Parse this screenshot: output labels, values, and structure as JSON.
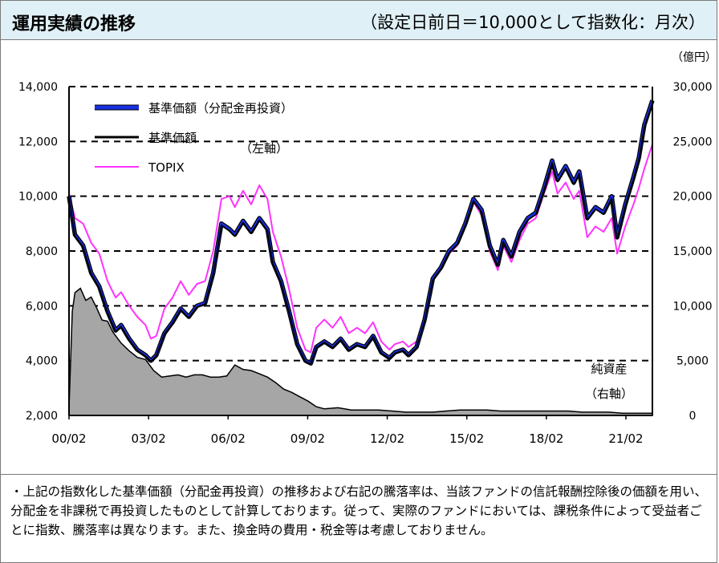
{
  "header": {
    "title": "運用実績の推移",
    "subtitle": "（設定日前日＝10,000として指数化：月次）"
  },
  "note": "・上記の指数化した基準価額（分配金再投資）の推移および右記の騰落率は、当該ファンドの信託報酬控除後の価額を用い、分配金を非課税で再投資したものとして計算しております。従って、実際のファンドにおいては、課税条件によって受益者ごとに指数、騰落率は異なります。また、換金時の費用・税金等は考慮しておりません。",
  "chart_data": {
    "type": "line",
    "x_ticks": [
      "00/02",
      "03/02",
      "06/02",
      "09/02",
      "12/02",
      "15/02",
      "18/02",
      "21/02"
    ],
    "x_range": [
      2000.08,
      2021.6
    ],
    "y_left": {
      "ylim": [
        2000,
        14000
      ],
      "ticks": [
        "2,000",
        "4,000",
        "6,000",
        "8,000",
        "10,000",
        "12,000",
        "14,000"
      ]
    },
    "y_right": {
      "unit_label": "（億円）",
      "ylim": [
        0,
        30000
      ],
      "ticks": [
        "0",
        "5,000",
        "10,000",
        "15,000",
        "20,000",
        "25,000",
        "30,000"
      ]
    },
    "axis_annotation_left": "（左軸）",
    "net_assets_label": [
      "純資産",
      "（右軸）"
    ],
    "grid": "dashed horizontal",
    "legend_position": "top-left",
    "colors": {
      "nav_reinvested": "#1a2fe0",
      "nav": "#000000",
      "topix": "#ff33ff",
      "net_assets": "#a6a6a6"
    },
    "series": [
      {
        "name": "基準価額（分配金再投資）",
        "axis": "left",
        "x": [
          2000.08,
          2000.3,
          2000.6,
          2000.9,
          2001.2,
          2001.5,
          2001.8,
          2002.0,
          2002.3,
          2002.6,
          2002.9,
          2003.1,
          2003.3,
          2003.6,
          2003.9,
          2004.2,
          2004.5,
          2004.8,
          2005.1,
          2005.4,
          2005.7,
          2006.0,
          2006.2,
          2006.5,
          2006.8,
          2007.1,
          2007.4,
          2007.6,
          2007.9,
          2008.2,
          2008.5,
          2008.8,
          2009.0,
          2009.2,
          2009.5,
          2009.8,
          2010.1,
          2010.4,
          2010.7,
          2011.0,
          2011.3,
          2011.6,
          2011.9,
          2012.1,
          2012.4,
          2012.6,
          2012.9,
          2013.2,
          2013.5,
          2013.8,
          2014.1,
          2014.4,
          2014.7,
          2015.0,
          2015.3,
          2015.6,
          2015.9,
          2016.1,
          2016.4,
          2016.7,
          2017.0,
          2017.3,
          2017.6,
          2017.9,
          2018.1,
          2018.4,
          2018.7,
          2018.9,
          2019.2,
          2019.5,
          2019.8,
          2020.1,
          2020.3,
          2020.6,
          2020.9,
          2021.1,
          2021.3,
          2021.6
        ],
        "y": [
          10000,
          8600,
          8200,
          7200,
          6700,
          5800,
          5100,
          5300,
          4800,
          4400,
          4200,
          4000,
          4200,
          5000,
          5400,
          5900,
          5600,
          6000,
          6100,
          7200,
          9000,
          8800,
          8600,
          9100,
          8700,
          9200,
          8800,
          7600,
          6900,
          5800,
          4600,
          4000,
          3900,
          4500,
          4700,
          4500,
          4800,
          4400,
          4600,
          4500,
          4900,
          4300,
          4100,
          4300,
          4400,
          4200,
          4500,
          5500,
          7000,
          7400,
          8000,
          8300,
          9000,
          9900,
          9500,
          8200,
          7500,
          8400,
          7800,
          8700,
          9200,
          9400,
          10300,
          11300,
          10600,
          11100,
          10500,
          10900,
          9200,
          9600,
          9400,
          10000,
          8500,
          9700,
          10700,
          11400,
          12600,
          13500
        ]
      },
      {
        "name": "基準価額",
        "axis": "left",
        "x": [
          2000.08,
          2000.3,
          2000.6,
          2000.9,
          2001.2,
          2001.5,
          2001.8,
          2002.0,
          2002.3,
          2002.6,
          2002.9,
          2003.1,
          2003.3,
          2003.6,
          2003.9,
          2004.2,
          2004.5,
          2004.8,
          2005.1,
          2005.4,
          2005.7,
          2006.0,
          2006.2,
          2006.5,
          2006.8,
          2007.1,
          2007.4,
          2007.6,
          2007.9,
          2008.2,
          2008.5,
          2008.8,
          2009.0,
          2009.2,
          2009.5,
          2009.8,
          2010.1,
          2010.4,
          2010.7,
          2011.0,
          2011.3,
          2011.6,
          2011.9,
          2012.1,
          2012.4,
          2012.6,
          2012.9,
          2013.2,
          2013.5,
          2013.8,
          2014.1,
          2014.4,
          2014.7,
          2015.0,
          2015.3,
          2015.6,
          2015.9,
          2016.1,
          2016.4,
          2016.7,
          2017.0,
          2017.3,
          2017.6,
          2017.9,
          2018.1,
          2018.4,
          2018.7,
          2018.9,
          2019.2,
          2019.5,
          2019.8,
          2020.1,
          2020.3,
          2020.6,
          2020.9,
          2021.1,
          2021.3,
          2021.6
        ],
        "y": [
          10000,
          8550,
          8150,
          7150,
          6650,
          5760,
          5060,
          5250,
          4760,
          4370,
          4170,
          3980,
          4170,
          4970,
          5360,
          5860,
          5560,
          5960,
          6060,
          7150,
          8940,
          8740,
          8540,
          9040,
          8640,
          9130,
          8740,
          7550,
          6850,
          5760,
          4570,
          3970,
          3880,
          4470,
          4670,
          4470,
          4770,
          4370,
          4570,
          4470,
          4870,
          4270,
          4080,
          4270,
          4370,
          4180,
          4470,
          5460,
          6950,
          7350,
          7940,
          8240,
          8940,
          9830,
          9430,
          8140,
          7450,
          8340,
          7750,
          8640,
          9130,
          9330,
          10230,
          11220,
          10530,
          11020,
          10430,
          10820,
          9140,
          9530,
          9340,
          9930,
          8440,
          9630,
          10620,
          11320,
          12510,
          13400
        ]
      },
      {
        "name": "TOPIX",
        "axis": "left",
        "x": [
          2000.08,
          2000.3,
          2000.6,
          2000.9,
          2001.2,
          2001.5,
          2001.8,
          2002.0,
          2002.3,
          2002.6,
          2002.9,
          2003.1,
          2003.3,
          2003.6,
          2003.9,
          2004.2,
          2004.5,
          2004.8,
          2005.1,
          2005.4,
          2005.7,
          2006.0,
          2006.2,
          2006.5,
          2006.8,
          2007.1,
          2007.4,
          2007.6,
          2007.9,
          2008.2,
          2008.5,
          2008.8,
          2009.0,
          2009.2,
          2009.5,
          2009.8,
          2010.1,
          2010.4,
          2010.7,
          2011.0,
          2011.3,
          2011.6,
          2011.9,
          2012.1,
          2012.4,
          2012.6,
          2012.9,
          2013.2,
          2013.5,
          2013.8,
          2014.1,
          2014.4,
          2014.7,
          2015.0,
          2015.3,
          2015.6,
          2015.9,
          2016.1,
          2016.4,
          2016.7,
          2017.0,
          2017.3,
          2017.6,
          2017.9,
          2018.1,
          2018.4,
          2018.7,
          2018.9,
          2019.2,
          2019.5,
          2019.8,
          2020.1,
          2020.3,
          2020.6,
          2020.9,
          2021.1,
          2021.3,
          2021.6
        ],
        "y": [
          10100,
          9200,
          9000,
          8300,
          7900,
          6900,
          6300,
          6500,
          6000,
          5600,
          5300,
          4800,
          4900,
          5900,
          6300,
          6900,
          6400,
          6800,
          6900,
          8000,
          9900,
          10000,
          9600,
          10200,
          9700,
          10400,
          9900,
          8700,
          7800,
          6600,
          5200,
          4400,
          4300,
          5200,
          5500,
          5200,
          5600,
          5000,
          5200,
          5000,
          5400,
          4700,
          4400,
          4600,
          4700,
          4500,
          4700,
          5600,
          7000,
          7400,
          7900,
          8200,
          8900,
          9800,
          9300,
          8000,
          7300,
          8200,
          7600,
          8400,
          9000,
          9200,
          10100,
          10900,
          10100,
          10500,
          9900,
          10200,
          8500,
          8900,
          8700,
          9200,
          7900,
          8900,
          9700,
          10300,
          11000,
          11900
        ]
      },
      {
        "name": "純資産",
        "axis": "right",
        "type": "area",
        "x": [
          2000.08,
          2000.2,
          2000.3,
          2000.5,
          2000.7,
          2000.9,
          2001.1,
          2001.3,
          2001.5,
          2001.7,
          2002.0,
          2002.3,
          2002.6,
          2002.9,
          2003.2,
          2003.5,
          2003.8,
          2004.1,
          2004.4,
          2004.7,
          2005.0,
          2005.3,
          2005.6,
          2005.9,
          2006.2,
          2006.5,
          2006.8,
          2007.1,
          2007.4,
          2007.7,
          2008.0,
          2008.3,
          2008.6,
          2008.9,
          2009.2,
          2009.5,
          2010.0,
          2010.5,
          2011.0,
          2011.5,
          2012.0,
          2012.5,
          2013.0,
          2013.5,
          2014.0,
          2014.5,
          2015.0,
          2015.5,
          2016.0,
          2016.5,
          2017.0,
          2017.5,
          2018.0,
          2018.5,
          2019.0,
          2019.5,
          2020.0,
          2020.5,
          2021.0,
          2021.6
        ],
        "y": [
          700,
          9500,
          11200,
          11600,
          10500,
          10800,
          9800,
          8700,
          8600,
          7600,
          6600,
          5900,
          5300,
          5100,
          4100,
          3500,
          3600,
          3700,
          3500,
          3700,
          3700,
          3500,
          3500,
          3600,
          4600,
          4200,
          4100,
          3800,
          3500,
          3000,
          2400,
          2100,
          1700,
          1300,
          800,
          600,
          700,
          500,
          500,
          500,
          400,
          300,
          300,
          300,
          400,
          500,
          500,
          500,
          400,
          400,
          400,
          400,
          400,
          400,
          300,
          300,
          300,
          200,
          200,
          200
        ]
      }
    ]
  }
}
